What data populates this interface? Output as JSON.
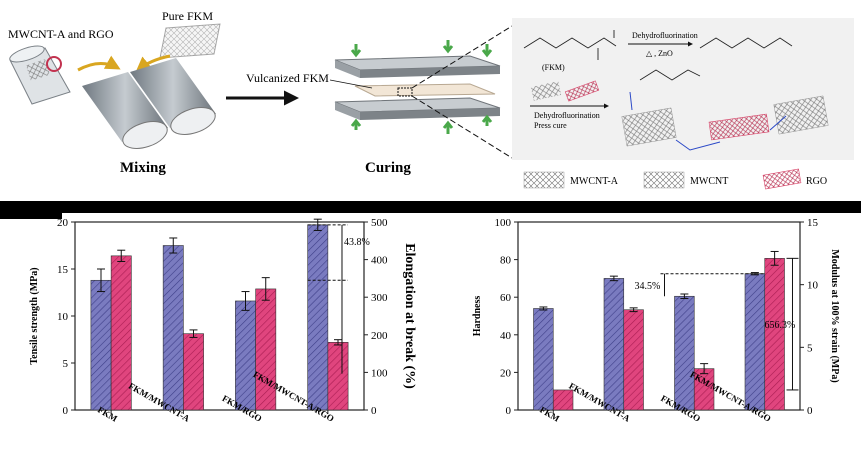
{
  "scheme": {
    "label_fillers": "MWCNT-A and RGO",
    "label_pure": "Pure FKM",
    "label_vulcanized": "Vulcanized FKM",
    "step_mixing": "Mixing",
    "step_curing": "Curing",
    "reaction_1": "Dehydrofluorination",
    "reaction_1_cond": "△ , ZnO",
    "reaction_2": "Dehydrofluorination",
    "reaction_2_cond": "Press cure",
    "fkm_label": "(FKM)",
    "legend": [
      "MWCNT-A",
      "MWCNT",
      "RGO"
    ],
    "colors": {
      "blue_bar": "#7a7bc0",
      "pink_bar": "#e0457e",
      "rgo": "#d9476b",
      "arrow": "#d9a620"
    }
  },
  "chart_data": [
    {
      "type": "bar",
      "categories": [
        "FKM",
        "FKM/MWCNT-A",
        "FKM/RGO",
        "FKM/MWCNT-A/RGO"
      ],
      "series": [
        {
          "values": [
            13.8,
            17.5,
            11.6,
            19.7
          ],
          "errors": [
            1.2,
            0.8,
            1.0,
            0.6
          ],
          "axis": "left",
          "color": "#7a7bc0"
        },
        {
          "values": [
            410,
            203,
            322,
            180
          ],
          "errors": [
            15,
            10,
            30,
            7
          ],
          "axis": "right",
          "color": "#e0457e"
        }
      ],
      "ylabel": "Tensile strength (MPa)",
      "ylim": [
        0,
        20
      ],
      "yticks": [
        0,
        5,
        10,
        15,
        20
      ],
      "y2label": "Elongation at break (%)",
      "y2lim": [
        0,
        500
      ],
      "y2ticks": [
        0,
        100,
        200,
        300,
        400,
        500
      ],
      "annotation": "43.8%"
    },
    {
      "type": "bar",
      "categories": [
        "FKM",
        "FKM/MWCNT-A",
        "FKM/RGO",
        "FKM/MWCNT-A/RGO"
      ],
      "series": [
        {
          "values": [
            54,
            70,
            60.5,
            72.5
          ],
          "errors": [
            0.8,
            1.2,
            1.2,
            0.6
          ],
          "axis": "left",
          "color": "#7a7bc0"
        },
        {
          "values": [
            1.6,
            8,
            3.3,
            12.1
          ],
          "errors": [
            0,
            0.15,
            0.4,
            0.55
          ],
          "axis": "right",
          "color": "#e0457e"
        }
      ],
      "ylabel": "Hardness",
      "ylim": [
        0,
        100
      ],
      "yticks": [
        0,
        20,
        40,
        60,
        80,
        100
      ],
      "y2label": "Modulus at 100% strain (MPa)",
      "y2lim": [
        0,
        15
      ],
      "y2ticks": [
        0,
        5,
        10,
        15
      ],
      "annotations": [
        "34.5%",
        "656.3%"
      ]
    }
  ]
}
